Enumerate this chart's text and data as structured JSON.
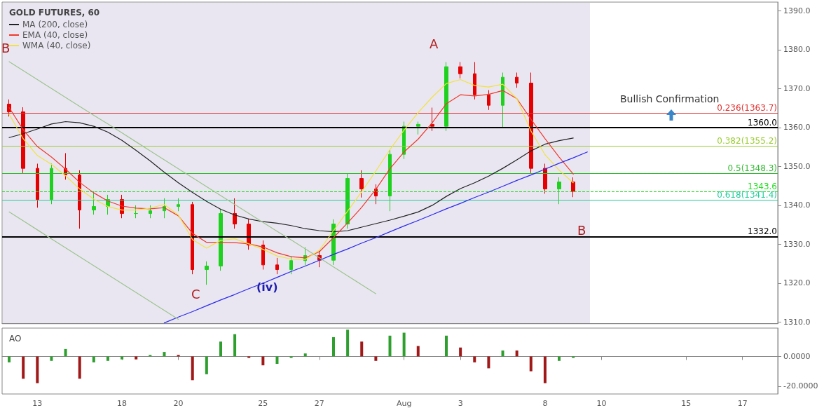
{
  "chart_data": [
    {
      "type": "candlestick",
      "title": "GOLD FUTURES, 60",
      "legend": "top left",
      "marker": "none",
      "tick_labels": "y",
      "categories": [
        null,
        null,
        null,
        null,
        null,
        null,
        null,
        null,
        null,
        null,
        null,
        null,
        null,
        null,
        null,
        null,
        null,
        null,
        null,
        null,
        null,
        null,
        null,
        null,
        null,
        null,
        null,
        null,
        null,
        null,
        null,
        null,
        null,
        null,
        null,
        null,
        null,
        null,
        null,
        null,
        null,
        null,
        null,
        null,
        null,
        null,
        null,
        null,
        null,
        null,
        null,
        null,
        null,
        null,
        null
      ],
      "ylim": [
        1309.6,
        1392.2
      ],
      "yticks": [
        {
          "value": 1310,
          "label": "1310.0"
        },
        {
          "value": 1320,
          "label": "1320.0"
        },
        {
          "value": 1330,
          "label": "1330.0"
        },
        {
          "value": 1340,
          "label": "1340.0"
        },
        {
          "value": 1350,
          "label": "1350.0"
        },
        {
          "value": 1360,
          "label": "1360.0"
        },
        {
          "value": 1370,
          "label": "1370.0"
        },
        {
          "value": 1380,
          "label": "1380.0"
        },
        {
          "value": 1390,
          "label": "1390.0"
        }
      ],
      "series": [
        {
          "colors": [
            "#e60000",
            "#e60000",
            "#e60000",
            "#1fd11f",
            "#e60000",
            "#e60000",
            "#1fd11f",
            "#1fd11f",
            "#e60000",
            "#1fd11f",
            "#1fd11f",
            "#1fd11f",
            "#1fd11f",
            "#e60000",
            "#1fd11f",
            "#1fd11f",
            "#e60000",
            "#e60000",
            "#e60000",
            "#e60000",
            "#1fd11f",
            "#1fd11f",
            "#e60000",
            "#1fd11f",
            "#1fd11f",
            "#e60000",
            "#e60000",
            "#1fd11f",
            "#1fd11f",
            "#1fd11f",
            "#e60000",
            "#1fd11f",
            "#e60000",
            "#e60000",
            "#e60000",
            "#1fd11f",
            "#e60000",
            "#e60000",
            "#e60000",
            "#1fd11f",
            "#e60000",
            null,
            null,
            null,
            null,
            null,
            null,
            null,
            null,
            null,
            null,
            null,
            null,
            null,
            null
          ],
          "ohlc": [
            [
              1366.0,
              1367.2,
              1362.8,
              1364.0
            ],
            [
              1364.0,
              1365.2,
              1348.3,
              1349.5
            ],
            [
              1349.5,
              1350.7,
              1339.4,
              1341.5
            ],
            [
              1341.5,
              1350.7,
              1340.3,
              1349.5
            ],
            [
              1349.5,
              1353.4,
              1346.6,
              1347.8
            ],
            [
              1347.8,
              1349.0,
              1334.0,
              1338.8
            ],
            [
              1338.8,
              1343.6,
              1337.6,
              1339.7
            ],
            [
              1339.7,
              1342.7,
              1337.6,
              1341.5
            ],
            [
              1341.5,
              1342.7,
              1336.7,
              1337.9
            ],
            [
              1337.9,
              1340.0,
              1336.7,
              1337.9
            ],
            [
              1337.9,
              1340.0,
              1336.7,
              1338.6
            ],
            [
              1338.6,
              1341.8,
              1336.7,
              1339.7
            ],
            [
              1339.7,
              1341.8,
              1338.5,
              1340.2
            ],
            [
              1340.2,
              1340.9,
              1322.3,
              1323.5
            ],
            [
              1323.5,
              1325.6,
              1319.6,
              1324.4
            ],
            [
              1324.4,
              1339.1,
              1323.2,
              1337.9
            ],
            [
              1337.9,
              1341.8,
              1334.0,
              1335.2
            ],
            [
              1335.2,
              1336.4,
              1328.6,
              1329.8
            ],
            [
              1329.8,
              1331.0,
              1323.5,
              1324.7
            ],
            [
              1324.7,
              1326.5,
              1322.3,
              1323.5
            ],
            [
              1323.5,
              1327.0,
              1322.3,
              1325.8
            ],
            [
              1325.8,
              1329.2,
              1324.6,
              1327.1
            ],
            [
              1327.1,
              1328.3,
              1324.1,
              1325.9
            ],
            [
              1325.9,
              1336.4,
              1324.7,
              1335.2
            ],
            [
              1335.2,
              1348.1,
              1334.0,
              1346.9
            ],
            [
              1346.9,
              1349.0,
              1342.0,
              1344.2
            ],
            [
              1344.2,
              1345.4,
              1340.3,
              1342.4
            ],
            [
              1342.4,
              1354.3,
              1338.5,
              1353.1
            ],
            [
              1353.1,
              1361.5,
              1351.9,
              1360.3
            ],
            [
              1360.3,
              1361.5,
              1358.2,
              1360.8
            ],
            [
              1360.8,
              1365.1,
              1359.1,
              1360.3
            ],
            [
              1360.3,
              1376.8,
              1359.1,
              1375.6
            ],
            [
              1375.6,
              1376.8,
              1372.6,
              1373.8
            ],
            [
              1373.8,
              1376.8,
              1367.2,
              1368.4
            ],
            [
              1368.4,
              1369.6,
              1364.5,
              1365.7
            ],
            [
              1365.7,
              1374.1,
              1360.0,
              1372.9
            ],
            [
              1372.9,
              1374.1,
              1370.2,
              1371.4
            ],
            [
              1371.4,
              1374.1,
              1348.3,
              1349.5
            ],
            [
              1349.5,
              1350.7,
              1343.0,
              1344.2
            ],
            [
              1344.2,
              1347.2,
              1340.3,
              1346.0
            ],
            [
              1346.0,
              1347.2,
              1342.1,
              1343.6
            ],
            null,
            null,
            null,
            null,
            null,
            null,
            null,
            null,
            null,
            null,
            null,
            null,
            null,
            null
          ]
        },
        {
          "type": "line",
          "name": "MA (200, close)",
          "color": "#222222",
          "values": [
            1357.4,
            1358.4,
            1359.6,
            1360.9,
            1361.5,
            1361.2,
            1360.3,
            1358.8,
            1356.7,
            1354.1,
            1351.4,
            1348.5,
            1345.8,
            1343.3,
            1341.0,
            1339.0,
            1337.5,
            1336.5,
            1335.8,
            1335.4,
            1334.8,
            1334.0,
            1333.5,
            1333.2,
            1333.5,
            1334.4,
            1335.3,
            1336.2,
            1337.2,
            1338.3,
            1340.0,
            1342.3,
            1344.3,
            1345.8,
            1347.5,
            1349.5,
            1351.7,
            1354.0,
            1355.7,
            1356.6,
            1357.3,
            null,
            null,
            null,
            null,
            null,
            null,
            null,
            null,
            null,
            null,
            null,
            null,
            null,
            null
          ]
        },
        {
          "type": "line",
          "name": "EMA (40, close)",
          "color": "#f03a2a",
          "values": [
            1365.1,
            1359.4,
            1355.1,
            1352.4,
            1349.3,
            1345.9,
            1343.2,
            1341.1,
            1339.8,
            1339.3,
            1339.1,
            1339.4,
            1337.3,
            1332.8,
            1330.5,
            1330.5,
            1330.4,
            1330.1,
            1329.3,
            1327.8,
            1326.8,
            1326.5,
            1328.1,
            1331.7,
            1335.5,
            1339.5,
            1344.1,
            1349.4,
            1353.7,
            1357.0,
            1361.2,
            1366.1,
            1368.4,
            1368.1,
            1368.5,
            1369.5,
            1367.4,
            1362.1,
            1357.1,
            1352.4,
            1348.0,
            null,
            null,
            null,
            null,
            null,
            null,
            null,
            null,
            null,
            null,
            null,
            null,
            null,
            null
          ]
        },
        {
          "type": "line",
          "name": "WMA (40, close)",
          "color": "#f2e33a",
          "values": [
            1363.4,
            1357.1,
            1352.8,
            1350.5,
            1347.6,
            1344.2,
            1341.6,
            1339.7,
            1338.8,
            1338.8,
            1339.3,
            1340.2,
            1337.5,
            1331.2,
            1329.0,
            1331.0,
            1331.4,
            1330.1,
            1328.7,
            1327.0,
            1326.2,
            1326.1,
            1328.5,
            1333.5,
            1338.5,
            1343.5,
            1348.8,
            1354.3,
            1359.3,
            1363.8,
            1367.8,
            1371.3,
            1372.3,
            1370.8,
            1370.4,
            1371.1,
            1367.4,
            1359.1,
            1353.0,
            1349.0,
            1345.8,
            null,
            null,
            null,
            null,
            null,
            null,
            null,
            null,
            null,
            null,
            null,
            null,
            null,
            null
          ]
        },
        {
          "type": "line",
          "color": "#2a2aee",
          "values": [
            null,
            null,
            null,
            null,
            null,
            null,
            null,
            null,
            null,
            null,
            null,
            1309.8,
            1311.3,
            1312.7,
            1314.2,
            1315.7,
            1317.1,
            1318.6,
            1320.0,
            1321.5,
            1323.0,
            1324.4,
            1325.9,
            1327.4,
            1328.8,
            1330.3,
            1331.7,
            1333.2,
            1334.7,
            1336.1,
            1337.6,
            1339.1,
            1340.5,
            1342.0,
            1343.4,
            1344.9,
            1346.4,
            1347.8,
            1349.3,
            1350.8,
            1352.2,
            1353.7,
            null,
            null,
            null,
            null,
            null,
            null,
            null,
            null,
            null,
            null,
            null,
            null,
            null
          ]
        },
        {
          "type": "line",
          "color": "#9cc48c",
          "values": [
            1376.9,
            1374.6,
            1372.3,
            1370.0,
            1367.7,
            1365.4,
            1363.1,
            1360.9,
            1358.6,
            1356.3,
            1354.0,
            1351.7,
            1349.4,
            1347.1,
            1344.8,
            1342.5,
            1340.2,
            1337.9,
            1335.6,
            1333.3,
            1331.1,
            1328.8,
            1326.5,
            1324.2,
            1321.9,
            1319.6,
            1317.3,
            null,
            null,
            null,
            null,
            null,
            null,
            null,
            null,
            null,
            null,
            null,
            null,
            null,
            null,
            null,
            null,
            null,
            null,
            null,
            null,
            null,
            null,
            null,
            null,
            null,
            null,
            null,
            null
          ]
        },
        {
          "type": "line",
          "color": "#9cc48c",
          "values": [
            1338.3,
            1336.0,
            1333.7,
            1331.4,
            1329.1,
            1326.8,
            1324.5,
            1322.2,
            1319.9,
            1317.6,
            1315.3,
            1313.0,
            1310.7,
            null,
            null,
            null,
            null,
            null,
            null,
            null,
            null,
            null,
            null,
            null,
            null,
            null,
            null,
            null,
            null,
            null,
            null,
            null,
            null,
            null,
            null,
            null,
            null,
            null,
            null,
            null,
            null,
            null,
            null,
            null,
            null,
            null,
            null,
            null,
            null,
            null,
            null,
            null,
            null,
            null,
            null
          ]
        }
      ],
      "ref_lines": [
        {
          "axis": "y",
          "value": 1360,
          "label": "1360.0",
          "color": "#000000"
        },
        {
          "axis": "y",
          "value": 1332,
          "label": "1332.0",
          "color": "#000000"
        },
        {
          "axis": "y",
          "value": 1343.6,
          "label": "1343.6",
          "color": "#22dd22",
          "line_style": "dashed"
        },
        {
          "axis": "y",
          "value": 1363.7,
          "label": "0.236(1363.7)",
          "color": "#e03030"
        },
        {
          "axis": "y",
          "value": 1355.2,
          "label": "0.382(1355.2)",
          "color": "#9acd32"
        },
        {
          "axis": "y",
          "value": 1348.3,
          "label": "0.5(1348.3)",
          "color": "#33bb33"
        },
        {
          "axis": "y",
          "value": 1341.4,
          "label": "0.618(1341.4)",
          "color": "#22cc99"
        }
      ],
      "annotations": [
        "B",
        "A",
        "C",
        "(iv)",
        "B",
        "Bullish Confirmation"
      ]
    },
    {
      "type": "bar",
      "title": "AO",
      "categories": [
        null,
        null,
        "13",
        null,
        null,
        null,
        null,
        null,
        "18",
        null,
        null,
        null,
        "20",
        null,
        null,
        null,
        null,
        null,
        "25",
        null,
        null,
        null,
        "27",
        null,
        null,
        null,
        null,
        null,
        "Aug",
        null,
        null,
        null,
        "3",
        null,
        null,
        null,
        null,
        null,
        "8",
        null,
        null,
        null,
        "10",
        null,
        null,
        null,
        null,
        null,
        "15",
        null,
        null,
        null,
        "17",
        null,
        null
      ],
      "ylim": [
        -25.3,
        19.1
      ],
      "yticks": [
        {
          "value": -20,
          "label": "-20.0000"
        },
        {
          "value": 0,
          "label": "0.0000"
        }
      ],
      "values": [
        -4,
        -15,
        -18,
        -3,
        5,
        -15,
        -4,
        -3,
        -2,
        -2,
        1,
        3,
        1,
        -16,
        -12,
        10,
        15,
        -1,
        -6,
        -5,
        -1,
        2,
        0,
        13,
        18,
        10,
        -3,
        14,
        16,
        7,
        0,
        14,
        6,
        -4,
        -8,
        4,
        4,
        -10,
        -18,
        -3,
        -1,
        null,
        null,
        null,
        null,
        null,
        null,
        null,
        null,
        null,
        null,
        null,
        null,
        null,
        null
      ],
      "colors": [
        "#2e9e2e",
        "#a01818",
        "#a01818",
        "#2e9e2e",
        "#2e9e2e",
        "#a01818",
        "#2e9e2e",
        "#2e9e2e",
        "#2e9e2e",
        "#a01818",
        "#2e9e2e",
        "#2e9e2e",
        "#a01818",
        "#a01818",
        "#2e9e2e",
        "#2e9e2e",
        "#2e9e2e",
        "#a01818",
        "#a01818",
        "#2e9e2e",
        "#2e9e2e",
        "#2e9e2e",
        "#a01818",
        "#2e9e2e",
        "#2e9e2e",
        "#a01818",
        "#a01818",
        "#2e9e2e",
        "#2e9e2e",
        "#a01818",
        "#a01818",
        "#2e9e2e",
        "#a01818",
        "#a01818",
        "#a01818",
        "#2e9e2e",
        "#a01818",
        "#a01818",
        "#a01818",
        "#2e9e2e",
        "#2e9e2e",
        null,
        null,
        null,
        null,
        null,
        null,
        null,
        null,
        null,
        null,
        null,
        null,
        null,
        null
      ]
    }
  ]
}
